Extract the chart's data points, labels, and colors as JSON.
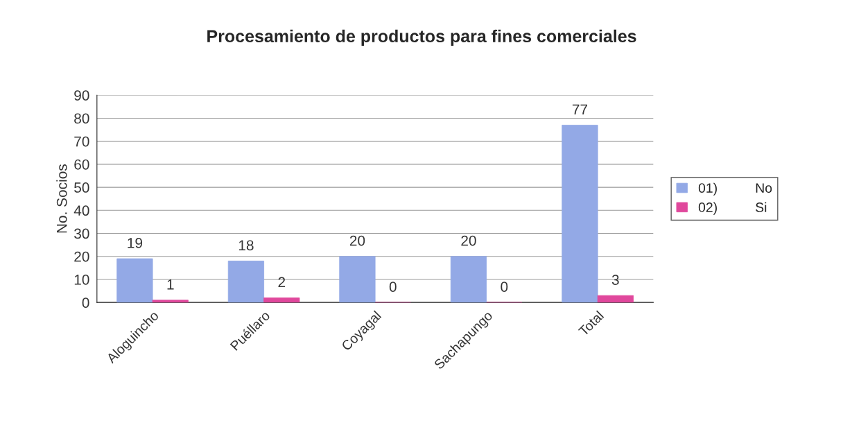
{
  "chart_data": {
    "type": "bar",
    "title": "Procesamiento de productos para fines comerciales",
    "ylabel": "No. Socios",
    "categories": [
      "Aloguincho",
      "Puéllaro",
      "Coyagal",
      "Sachapungo",
      "Total"
    ],
    "series": [
      {
        "name": "01)          No",
        "color": "#93a9e6",
        "values": [
          19,
          18,
          20,
          20,
          77
        ]
      },
      {
        "name": "02)          Si",
        "color": "#e0489c",
        "values": [
          1,
          2,
          0,
          0,
          3
        ]
      }
    ],
    "ylim": [
      0,
      90
    ],
    "yticks": [
      0,
      10,
      20,
      30,
      40,
      50,
      60,
      70,
      80,
      90
    ],
    "grid": "y",
    "legend": "right",
    "data_labels": true
  }
}
